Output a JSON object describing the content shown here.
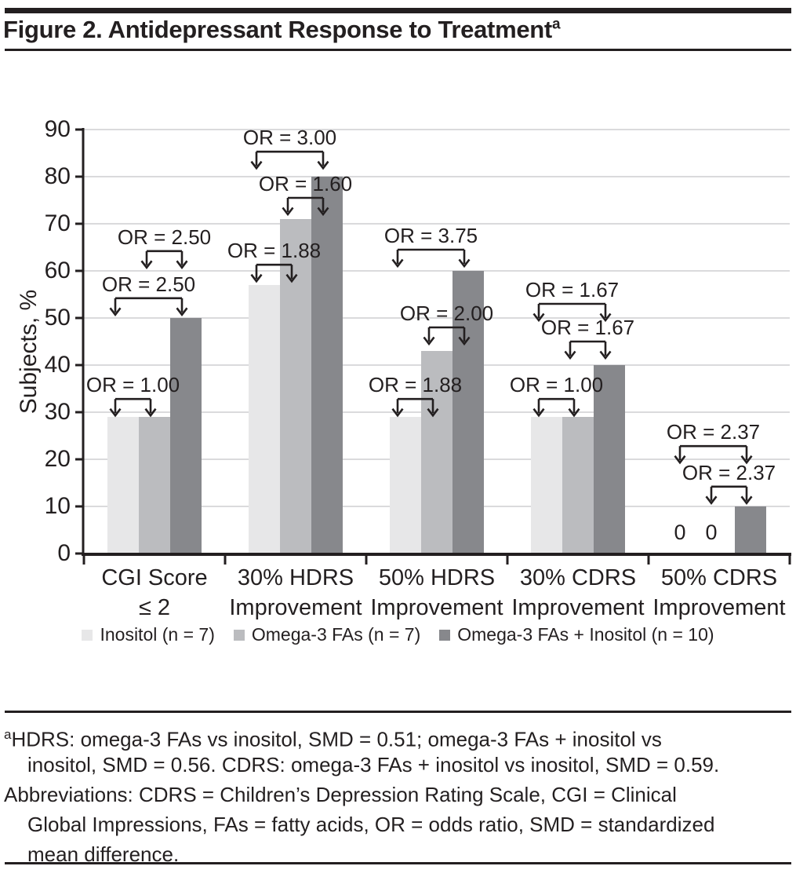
{
  "colors": {
    "ink": "#231f20",
    "gridline": "#cdced0",
    "background": "#ffffff"
  },
  "header": {
    "title": "Figure 2. Antidepressant Response to Treatment",
    "title_superscript": "a"
  },
  "chart_data": {
    "type": "bar",
    "title": "Figure 2. Antidepressant Response to Treatment",
    "xlabel": "",
    "ylabel": "Subjects, %",
    "ylim": [
      0,
      90
    ],
    "yticks": [
      0,
      10,
      20,
      30,
      40,
      50,
      60,
      70,
      80,
      90
    ],
    "grid": "horizontal",
    "legend_position": "bottom",
    "categories": [
      "CGI Score ≤ 2",
      "30% HDRS Improvement",
      "50% HDRS Improvement",
      "30% CDRS Improvement",
      "50% CDRS Improvement"
    ],
    "category_label_lines": [
      [
        "CGI Score",
        "≤ 2"
      ],
      [
        "30% HDRS",
        "Improvement"
      ],
      [
        "50% HDRS",
        "Improvement"
      ],
      [
        "30% CDRS",
        "Improvement"
      ],
      [
        "50% CDRS",
        "Improvement"
      ]
    ],
    "series": [
      {
        "name": "Inositol (n = 7)",
        "color": "#e7e7e8",
        "values": [
          29,
          57,
          29,
          29,
          0
        ]
      },
      {
        "name": "Omega-3 FAs (n = 7)",
        "color": "#bbbcbf",
        "values": [
          29,
          71,
          43,
          29,
          0
        ]
      },
      {
        "name": "Omega-3 FAs + Inositol (n = 10)",
        "color": "#87888c",
        "values": [
          50,
          80,
          60,
          40,
          10
        ]
      }
    ],
    "zero_value_labels": [
      {
        "category_index": 4,
        "series_index": 0,
        "text": "0"
      },
      {
        "category_index": 4,
        "series_index": 1,
        "text": "0"
      }
    ],
    "annotations": [
      {
        "category_index": 0,
        "label": "OR = 1.00",
        "from_series": 0,
        "to_series": 1,
        "bracket_y": 32.8
      },
      {
        "category_index": 0,
        "label": "OR = 2.50",
        "from_series": 0,
        "to_series": 2,
        "bracket_y": 54.2
      },
      {
        "category_index": 0,
        "label": "OR = 2.50",
        "from_series": 1,
        "to_series": 2,
        "bracket_y": 64.2
      },
      {
        "category_index": 1,
        "label": "OR = 1.88",
        "from_series": 0,
        "to_series": 1,
        "bracket_y": 61.3
      },
      {
        "category_index": 1,
        "label": "OR = 1.60",
        "from_series": 1,
        "to_series": 2,
        "bracket_y": 75.5
      },
      {
        "category_index": 1,
        "label": "OR = 3.00",
        "from_series": 0,
        "to_series": 2,
        "bracket_y": 85.3
      },
      {
        "category_index": 2,
        "label": "OR = 1.88",
        "from_series": 0,
        "to_series": 1,
        "bracket_y": 32.8
      },
      {
        "category_index": 2,
        "label": "OR = 2.00",
        "from_series": 1,
        "to_series": 2,
        "bracket_y": 48.0
      },
      {
        "category_index": 2,
        "label": "OR = 3.75",
        "from_series": 0,
        "to_series": 2,
        "bracket_y": 64.5
      },
      {
        "category_index": 3,
        "label": "OR = 1.00",
        "from_series": 0,
        "to_series": 1,
        "bracket_y": 32.8
      },
      {
        "category_index": 3,
        "label": "OR = 1.67",
        "from_series": 1,
        "to_series": 2,
        "bracket_y": 45.0
      },
      {
        "category_index": 3,
        "label": "OR = 1.67",
        "from_series": 0,
        "to_series": 2,
        "bracket_y": 53.0
      },
      {
        "category_index": 4,
        "label": "OR = 2.37",
        "from_series": 1,
        "to_series": 2,
        "bracket_y": 14.2
      },
      {
        "category_index": 4,
        "label": "OR = 2.37",
        "from_series": 0,
        "to_series": 2,
        "bracket_y": 22.8
      }
    ]
  },
  "footnote": {
    "superscript": "a",
    "lines": [
      "HDRS: omega-3 FAs vs inositol, SMD = 0.51; omega-3 FAs + inositol vs",
      "inositol, SMD = 0.56. CDRS: omega-3 FAs + inositol vs inositol, SMD = 0.59.",
      "Abbreviations: CDRS = Children’s Depression Rating Scale, CGI = Clinical",
      "Global Impressions, FAs = fatty acids, OR = odds ratio, SMD = standardized",
      "mean difference."
    ]
  }
}
